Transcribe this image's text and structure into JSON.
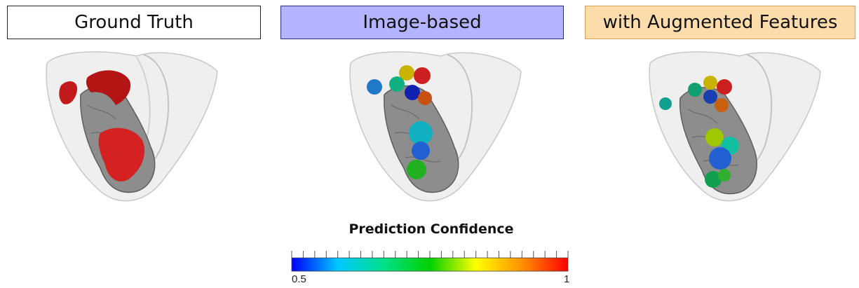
{
  "panels": [
    {
      "id": "gt",
      "title": "Ground Truth"
    },
    {
      "id": "img",
      "title": "Image-based"
    },
    {
      "id": "aug",
      "title": "with Augmented Features"
    }
  ],
  "colorbar": {
    "title": "Prediction Confidence",
    "min_label": "0.5",
    "max_label": "1",
    "colors": [
      "#0000ff",
      "#00c8ff",
      "#00e08a",
      "#00d000",
      "#ffff00",
      "#ff9000",
      "#ff0000"
    ]
  }
}
